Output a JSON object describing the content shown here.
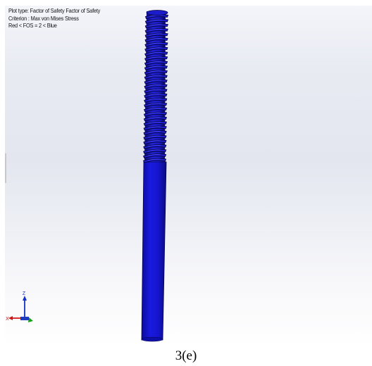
{
  "plot_info": {
    "line1": "Plot type: Factor of Safety Factor of Safety",
    "line2": "Criterion : Max von Mises Stress",
    "line3": "Red <  FOS = 2 < Blue"
  },
  "triad": {
    "z_label": "Z",
    "x_label": "X"
  },
  "caption": "3(e)",
  "colors": {
    "part_fill": "#1414d2",
    "part_dark": "#0a0a6e",
    "part_light": "#3a3aff",
    "axis_x": "#d21414",
    "axis_y": "#14a014",
    "axis_z": "#1432c8"
  },
  "model": {
    "part": "threaded-rod",
    "state": "fos-above-threshold"
  }
}
